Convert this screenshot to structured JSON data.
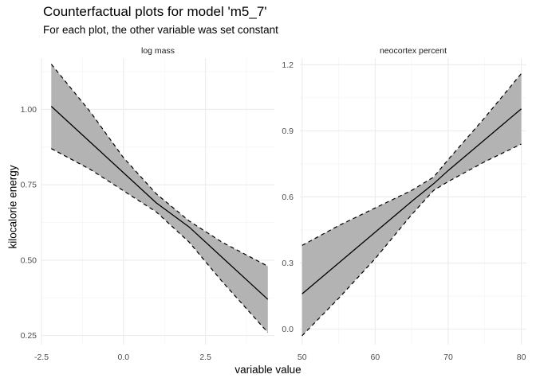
{
  "title": "Counterfactual plots for model 'm5_7'",
  "subtitle": "For each plot, the other variable was set constant",
  "colors": {
    "band": "#b3b3b3",
    "line": "#000000",
    "grid_major": "#ebebeb",
    "grid_minor": "#f5f5f5",
    "text": "#4d4d4d"
  },
  "chart_data": {
    "type": "line",
    "xlabel": "variable value",
    "ylabel": "kilocalorie energy",
    "grid": true,
    "panels": [
      {
        "strip": "log mass",
        "xlim": [
          -2.5,
          4.6
        ],
        "ylim": [
          0.22,
          1.17
        ],
        "xticks": [
          -2.5,
          0.0,
          2.5
        ],
        "xtick_labels": [
          "-2.5",
          "0.0",
          "2.5"
        ],
        "yticks": [
          0.25,
          0.5,
          0.75,
          1.0
        ],
        "ytick_labels": [
          "0.25",
          "0.50",
          "0.75",
          "1.00"
        ],
        "x": [
          -2.2,
          -1.0,
          0.0,
          1.0,
          2.0,
          3.0,
          4.4
        ],
        "mean": [
          1.01,
          0.89,
          0.79,
          0.69,
          0.61,
          0.51,
          0.37
        ],
        "upper": [
          1.15,
          0.99,
          0.84,
          0.72,
          0.63,
          0.56,
          0.48
        ],
        "lower": [
          0.87,
          0.8,
          0.73,
          0.66,
          0.56,
          0.43,
          0.26
        ]
      },
      {
        "strip": "neocortex percent",
        "xlim": [
          49.7,
          80.7
        ],
        "ylim": [
          -0.07,
          1.23
        ],
        "xticks": [
          50,
          60,
          70,
          80
        ],
        "xtick_labels": [
          "50",
          "60",
          "70",
          "80"
        ],
        "yticks": [
          0.0,
          0.3,
          0.6,
          0.9,
          1.2
        ],
        "ytick_labels": [
          "0.0",
          "0.3",
          "0.6",
          "0.9",
          "1.2"
        ],
        "x": [
          50,
          55,
          60,
          65,
          68,
          70,
          75,
          80
        ],
        "mean": [
          0.16,
          0.3,
          0.44,
          0.58,
          0.66,
          0.72,
          0.86,
          1.0
        ],
        "upper": [
          0.38,
          0.47,
          0.55,
          0.63,
          0.69,
          0.77,
          0.96,
          1.16
        ],
        "lower": [
          -0.03,
          0.14,
          0.32,
          0.52,
          0.63,
          0.67,
          0.76,
          0.84
        ]
      }
    ]
  }
}
